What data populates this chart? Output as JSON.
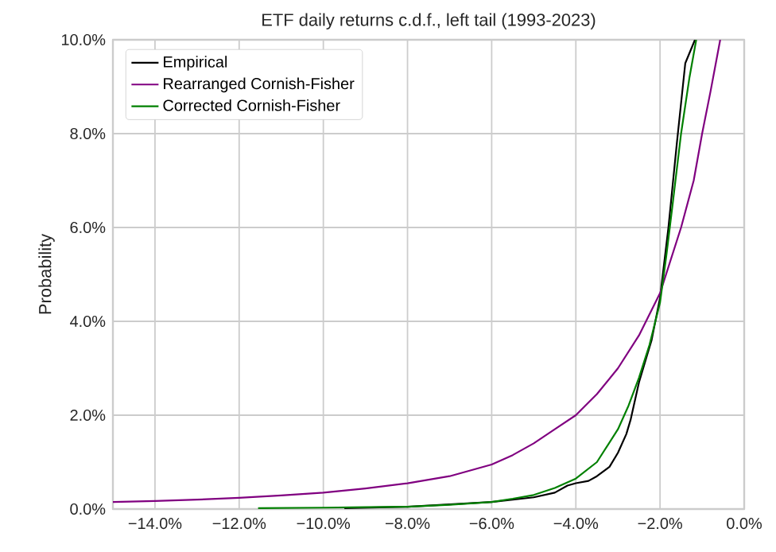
{
  "chart_data": {
    "type": "line",
    "title": "ETF daily returns c.d.f., left tail (1993-2023)",
    "ylabel": "Probability",
    "xlim": [
      -15,
      0
    ],
    "ylim": [
      0,
      10
    ],
    "xticks": [
      {
        "value": -14,
        "label": "−14.0%"
      },
      {
        "value": -12,
        "label": "−12.0%"
      },
      {
        "value": -10,
        "label": "−10.0%"
      },
      {
        "value": -8,
        "label": "−8.0%"
      },
      {
        "value": -6,
        "label": "−6.0%"
      },
      {
        "value": -4,
        "label": "−4.0%"
      },
      {
        "value": -2,
        "label": "−2.0%"
      },
      {
        "value": 0,
        "label": "0.0%"
      }
    ],
    "yticks": [
      {
        "value": 0,
        "label": "0.0%"
      },
      {
        "value": 2,
        "label": "2.0%"
      },
      {
        "value": 4,
        "label": "4.0%"
      },
      {
        "value": 6,
        "label": "6.0%"
      },
      {
        "value": 8,
        "label": "8.0%"
      },
      {
        "value": 10,
        "label": "10.0%"
      }
    ],
    "grid": true,
    "legend": "top left",
    "marker": "none",
    "line_style": "solid",
    "series": [
      {
        "name": "Empirical",
        "color": "#000000",
        "x": [
          -9.5,
          -8,
          -7,
          -6,
          -5,
          -4.5,
          -4.2,
          -4,
          -3.7,
          -3.5,
          -3.2,
          -3,
          -2.8,
          -2.7,
          -2.5,
          -2.3,
          -2.2,
          -2,
          -1.8,
          -1.6,
          -1.4,
          -1.17
        ],
        "values": [
          0.02,
          0.05,
          0.1,
          0.15,
          0.25,
          0.35,
          0.5,
          0.55,
          0.6,
          0.7,
          0.9,
          1.2,
          1.6,
          1.9,
          2.7,
          3.3,
          3.6,
          4.5,
          6.0,
          7.8,
          9.5,
          10.0
        ]
      },
      {
        "name": "Rearranged Cornish-Fisher",
        "color": "#800080",
        "x": [
          -15,
          -14,
          -13,
          -12,
          -11,
          -10,
          -9,
          -8,
          -7,
          -6,
          -5.5,
          -5,
          -4.5,
          -4,
          -3.5,
          -3,
          -2.5,
          -2,
          -1.5,
          -1.2,
          -1,
          -0.8,
          -0.57
        ],
        "values": [
          0.15,
          0.17,
          0.2,
          0.24,
          0.29,
          0.35,
          0.44,
          0.55,
          0.7,
          0.95,
          1.15,
          1.4,
          1.7,
          2.0,
          2.45,
          3.0,
          3.7,
          4.6,
          6.0,
          7.0,
          8.0,
          8.9,
          10.0
        ]
      },
      {
        "name": "Corrected Cornish-Fisher",
        "color": "#008000",
        "x": [
          -11.55,
          -10,
          -9,
          -8,
          -7,
          -6,
          -5.5,
          -5,
          -4.5,
          -4,
          -3.5,
          -3,
          -2.75,
          -2.5,
          -2.25,
          -2,
          -1.85,
          -1.7,
          -1.5,
          -1.3,
          -1.14
        ],
        "values": [
          0.02,
          0.03,
          0.04,
          0.05,
          0.09,
          0.15,
          0.22,
          0.3,
          0.45,
          0.65,
          1.0,
          1.7,
          2.2,
          2.8,
          3.5,
          4.4,
          5.4,
          6.5,
          8.0,
          9.2,
          10.0
        ]
      }
    ]
  }
}
